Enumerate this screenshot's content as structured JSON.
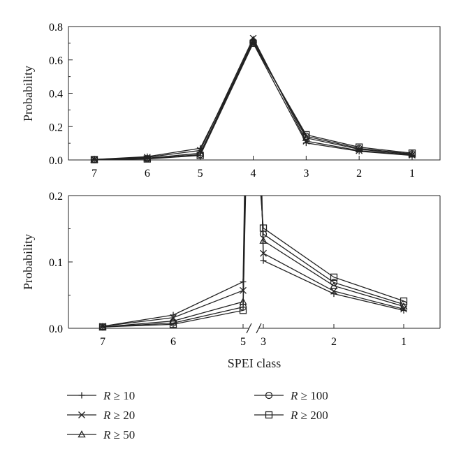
{
  "chart_data": [
    {
      "type": "line",
      "ylabel": "Probability",
      "xlabel": "",
      "categories": [
        "7",
        "6",
        "5",
        "4",
        "3",
        "2",
        "1"
      ],
      "ylim": [
        0,
        0.8
      ],
      "yticks": [
        "0.0",
        "0.2",
        "0.4",
        "0.6",
        "0.8"
      ],
      "grid": false,
      "series": [
        {
          "name": "R ≥ 10",
          "marker": "plus",
          "values": [
            0.003,
            0.02,
            0.07,
            0.7,
            0.102,
            0.052,
            0.027
          ]
        },
        {
          "name": "R ≥ 20",
          "marker": "cross",
          "values": [
            0.003,
            0.016,
            0.057,
            0.73,
            0.113,
            0.056,
            0.029
          ]
        },
        {
          "name": "R ≥ 50",
          "marker": "triangle",
          "values": [
            0.002,
            0.011,
            0.04,
            0.72,
            0.132,
            0.064,
            0.033
          ]
        },
        {
          "name": "R ≥ 100",
          "marker": "circle",
          "values": [
            0.002,
            0.008,
            0.032,
            0.71,
            0.142,
            0.069,
            0.036
          ]
        },
        {
          "name": "R ≥ 200",
          "marker": "square",
          "values": [
            0.002,
            0.006,
            0.027,
            0.7,
            0.151,
            0.077,
            0.041
          ]
        }
      ]
    },
    {
      "type": "line",
      "ylabel": "Probability",
      "xlabel": "SPEI class",
      "categories": [
        "7",
        "6",
        "5",
        "3",
        "2",
        "1"
      ],
      "axis_break": "between 5 and 3",
      "ylim": [
        0,
        0.2
      ],
      "yticks": [
        "0.0",
        "0.1",
        "0.2"
      ],
      "grid": false,
      "legend_position": "below",
      "series": [
        {
          "name": "R ≥ 10",
          "marker": "plus",
          "values": [
            0.003,
            0.02,
            0.07,
            0.102,
            0.052,
            0.027
          ]
        },
        {
          "name": "R ≥ 20",
          "marker": "cross",
          "values": [
            0.003,
            0.016,
            0.057,
            0.113,
            0.056,
            0.029
          ]
        },
        {
          "name": "R ≥ 50",
          "marker": "triangle",
          "values": [
            0.002,
            0.011,
            0.04,
            0.132,
            0.064,
            0.033
          ]
        },
        {
          "name": "R ≥ 100",
          "marker": "circle",
          "values": [
            0.002,
            0.008,
            0.032,
            0.142,
            0.069,
            0.036
          ]
        },
        {
          "name": "R ≥ 200",
          "marker": "square",
          "values": [
            0.002,
            0.006,
            0.027,
            0.151,
            0.077,
            0.041
          ]
        }
      ]
    }
  ],
  "legend": {
    "entries": [
      {
        "label": "R ≥ 10",
        "marker": "plus"
      },
      {
        "label": "R ≥ 20",
        "marker": "cross"
      },
      {
        "label": "R ≥ 50",
        "marker": "triangle"
      },
      {
        "label": "R ≥ 100",
        "marker": "circle"
      },
      {
        "label": "R ≥ 200",
        "marker": "square"
      }
    ]
  },
  "colors": {
    "line": "#222222",
    "background": "#ffffff"
  }
}
